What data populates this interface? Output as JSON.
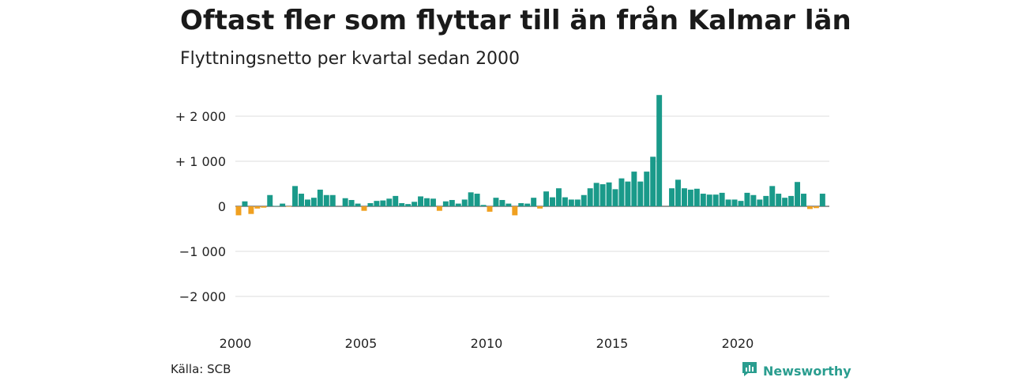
{
  "header": {
    "title": "Oftast fler som flyttar till än från Kalmar län",
    "subtitle": "Flyttningsnetto per kvartal sedan 2000"
  },
  "footer": {
    "source": "Källa: SCB",
    "brand": "Newsworthy"
  },
  "colors": {
    "positive": "#1a9a8a",
    "negative": "#f0a020",
    "grid": "#dddddd",
    "brand": "#2a9d8f"
  },
  "chart_data": {
    "type": "bar",
    "title": "Oftast fler som flyttar till än från Kalmar län",
    "subtitle": "Flyttningsnetto per kvartal sedan 2000",
    "ylim": [
      -2500,
      2500
    ],
    "y_ticks": [
      2000,
      1000,
      0,
      -1000,
      -2000
    ],
    "y_tick_labels": [
      "+ 2 000",
      "+ 1 000",
      "0",
      "−1 000",
      "−2 000"
    ],
    "x_ticks": [
      2000,
      2005,
      2010,
      2015,
      2020
    ],
    "x_tick_labels": [
      "2000",
      "2005",
      "2010",
      "2015",
      "2020"
    ],
    "grid": true,
    "start_year": 2000,
    "periods_per_year": 4,
    "values": [
      -200,
      110,
      -170,
      -50,
      -30,
      250,
      10,
      60,
      -10,
      450,
      280,
      150,
      190,
      370,
      250,
      250,
      0,
      180,
      140,
      60,
      -100,
      70,
      120,
      130,
      170,
      230,
      70,
      50,
      100,
      220,
      180,
      170,
      -100,
      110,
      140,
      60,
      150,
      310,
      280,
      30,
      -120,
      190,
      140,
      60,
      -200,
      70,
      60,
      190,
      -50,
      330,
      200,
      400,
      200,
      150,
      150,
      250,
      400,
      520,
      490,
      530,
      380,
      620,
      550,
      770,
      550,
      770,
      1100,
      2470,
      0,
      400,
      590,
      400,
      370,
      390,
      280,
      260,
      260,
      300,
      150,
      150,
      120,
      300,
      250,
      150,
      230,
      450,
      280,
      190,
      230,
      540,
      280,
      -60,
      -40,
      280
    ]
  }
}
